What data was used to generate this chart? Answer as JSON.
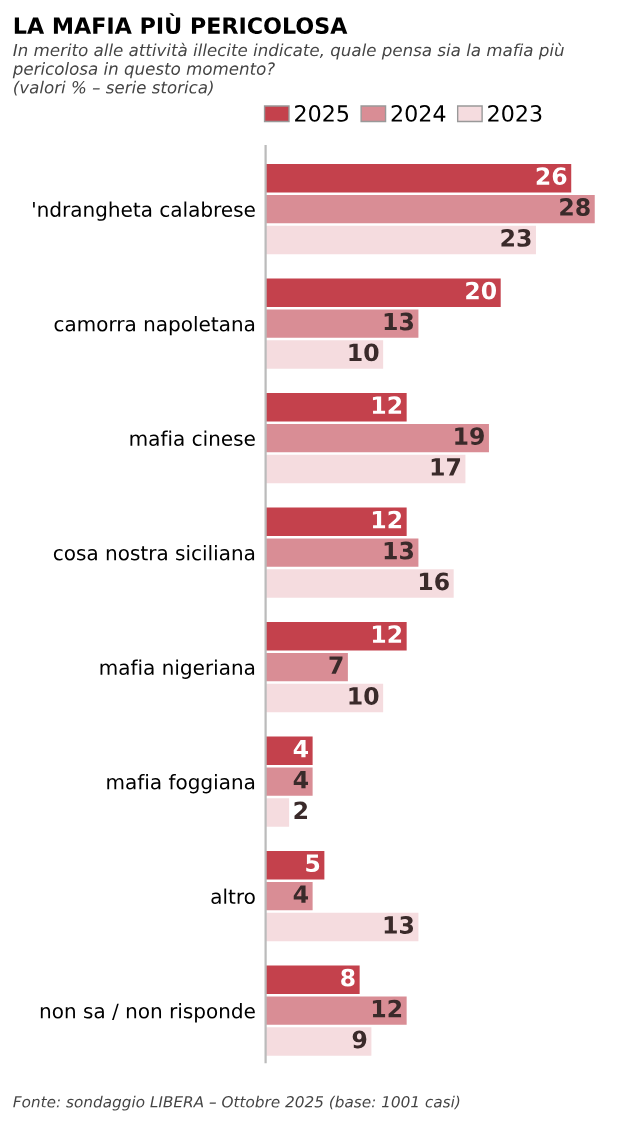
{
  "chart_data": {
    "type": "bar",
    "orientation": "horizontal",
    "title": "LA MAFIA PIÙ PERICOLOSA",
    "subtitle": "In merito alle attività illecite indicate, quale pensa sia la mafia più pericolosa in questo momento?\n(valori % – serie storica)",
    "categories": [
      "'ndrangheta calabrese",
      "camorra napoletana",
      "mafia cinese",
      "cosa nostra siciliana",
      "mafia nigeriana",
      "mafia foggiana",
      "altro",
      "non sa / non risponde"
    ],
    "series": [
      {
        "name": "2025",
        "color": "#c4414c",
        "values": [
          26,
          20,
          12,
          12,
          12,
          4,
          5,
          8
        ]
      },
      {
        "name": "2024",
        "color": "#d98d95",
        "values": [
          28,
          13,
          19,
          13,
          7,
          4,
          4,
          12
        ]
      },
      {
        "name": "2023",
        "color": "#f5dcdf",
        "values": [
          23,
          10,
          17,
          16,
          10,
          2,
          13,
          9
        ]
      }
    ],
    "data_labels": true,
    "legend": "top",
    "grid": false,
    "tick_labels": "y",
    "annotations": [
      "Fonte: sondaggio LIBERA – Ottobre 2025 (base: 1001 casi)"
    ]
  }
}
